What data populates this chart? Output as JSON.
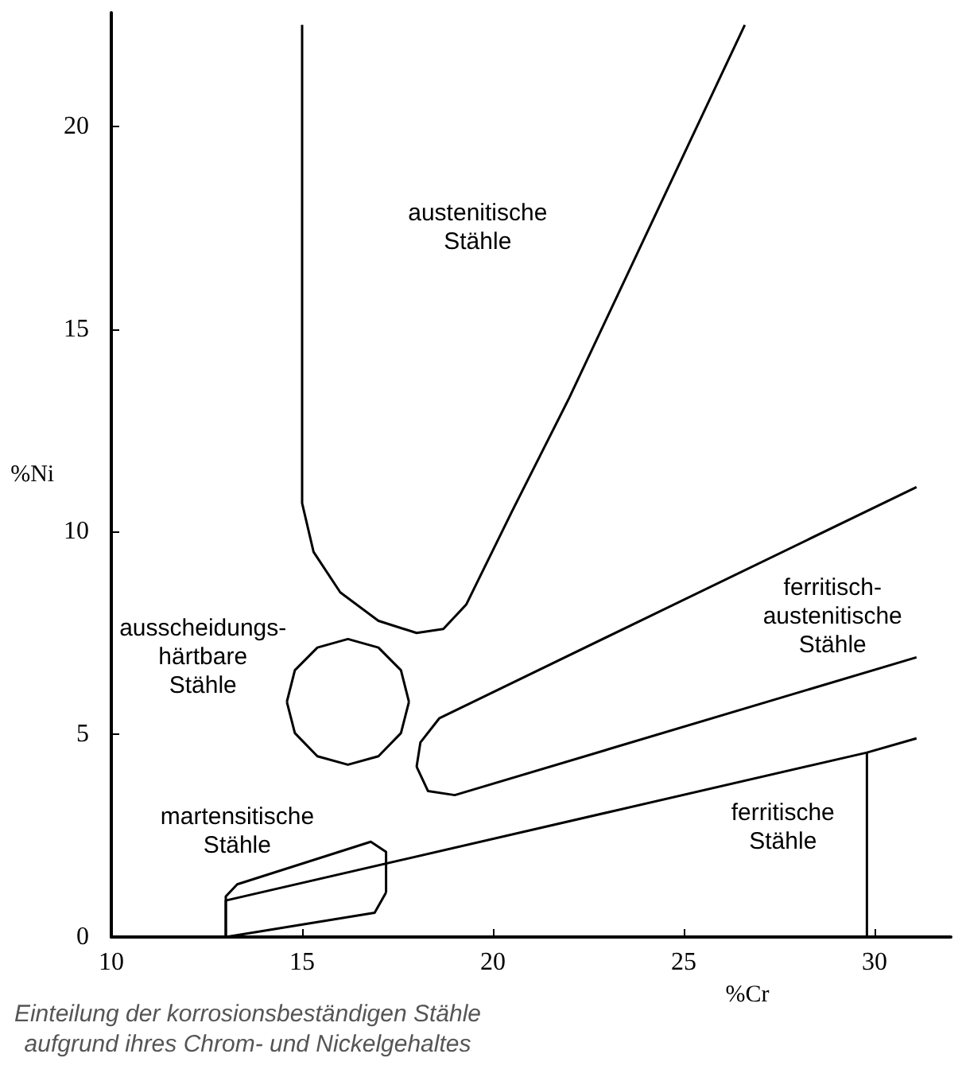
{
  "chart_data": {
    "type": "line",
    "title": "Einteilung der korrosionsbeständigen Stähle\naufgrund ihres Chrom- und Nickelgehaltes",
    "xlabel": "%Cr",
    "ylabel": "%Ni",
    "xlim": [
      10,
      32
    ],
    "ylim": [
      0,
      22.8
    ],
    "xticks": [
      10,
      15,
      20,
      25,
      30
    ],
    "yticks": [
      0,
      5,
      10,
      15,
      20
    ],
    "grid": false,
    "marker": "none",
    "line_style": "solid",
    "series": [
      {
        "color": "#000000",
        "x": [
          15,
          15,
          15.3,
          16,
          17,
          18,
          18.7,
          19.3,
          20.5,
          22,
          23.5,
          25,
          26.6
        ],
        "values": [
          22.5,
          10.7,
          9.5,
          8.5,
          7.8,
          7.5,
          7.6,
          8.2,
          10.5,
          13.3,
          16.3,
          19.3,
          22.5
        ]
      },
      {
        "color": "#000000",
        "x": [
          14.6,
          14.81,
          15.4,
          16.2,
          17.0,
          17.59,
          17.8
        ],
        "values": [
          5.8,
          6.58,
          7.14,
          7.35,
          7.14,
          6.58,
          5.8
        ]
      },
      {
        "color": "#000000",
        "x": [
          14.6,
          14.81,
          15.4,
          16.2,
          17.0,
          17.59,
          17.8
        ],
        "values": [
          5.8,
          5.03,
          4.46,
          4.25,
          4.46,
          5.03,
          5.8
        ]
      },
      {
        "color": "#000000",
        "x": [
          18,
          18.1,
          18.6,
          31.1
        ],
        "values": [
          4.2,
          4.8,
          5.4,
          11.1
        ]
      },
      {
        "color": "#000000",
        "x": [
          18,
          18.3,
          19,
          31.1
        ],
        "values": [
          4.2,
          3.6,
          3.5,
          6.9
        ]
      },
      {
        "color": "#000000",
        "x": [
          13,
          13,
          29.8,
          31.1
        ],
        "values": [
          0,
          0.9,
          4.55,
          4.9
        ]
      },
      {
        "color": "#000000",
        "x": [
          29.8,
          29.8
        ],
        "values": [
          0,
          4.55
        ]
      },
      {
        "color": "#000000",
        "x": [
          13,
          13,
          13.3,
          16.8,
          17.2,
          17.2
        ],
        "values": [
          0,
          1.0,
          1.3,
          2.35,
          2.1,
          1.1
        ]
      },
      {
        "color": "#000000",
        "x": [
          13,
          16.9,
          17.2
        ],
        "values": [
          0,
          0.6,
          1.1
        ]
      }
    ],
    "annotations": [
      "austenitische\nStähle",
      "ausscheidungs-\nhärtbare\nStähle",
      "ferritisch-\naustenitische\nStähle",
      "ferritische\nStähle",
      "martensitische\nStähle"
    ]
  }
}
